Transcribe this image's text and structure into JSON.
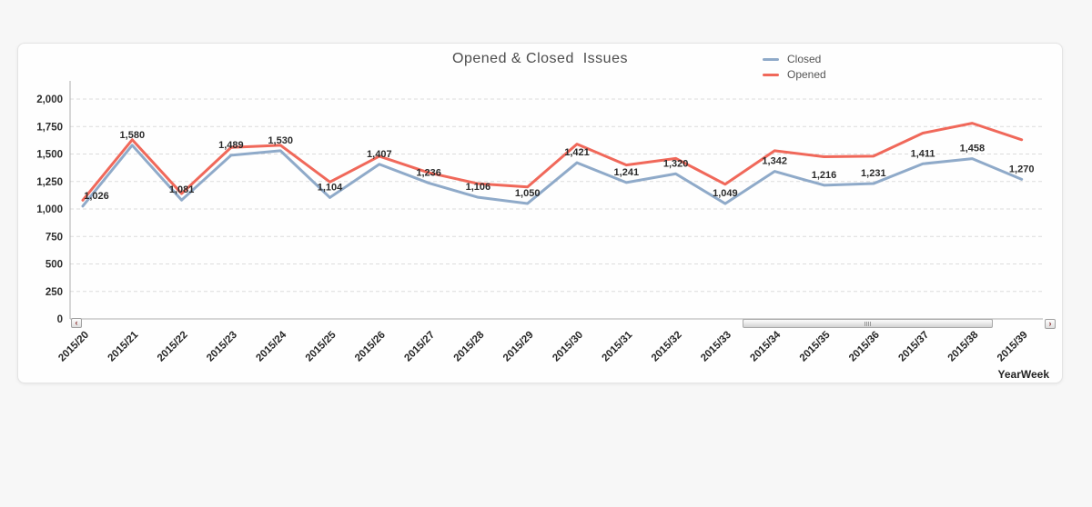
{
  "page": {
    "background": "#f7f7f7"
  },
  "card": {
    "background": "#fefefe",
    "border_color": "#e4e4e4"
  },
  "chart_data": {
    "type": "line",
    "title": "Opened & Closed  Issues",
    "xlabel": "YearWeek",
    "ylabel": "",
    "ylim": [
      0,
      2000
    ],
    "ytick_step": 250,
    "ytick_labels": [
      "0",
      "250",
      "500",
      "750",
      "1,000",
      "1,250",
      "1,500",
      "1,750",
      "2,000"
    ],
    "grid": true,
    "legend_position": "top-right",
    "categories": [
      "2015/20",
      "2015/21",
      "2015/22",
      "2015/23",
      "2015/24",
      "2015/25",
      "2015/26",
      "2015/27",
      "2015/28",
      "2015/29",
      "2015/30",
      "2015/31",
      "2015/32",
      "2015/33",
      "2015/34",
      "2015/35",
      "2015/36",
      "2015/37",
      "2015/38",
      "2015/39"
    ],
    "series": [
      {
        "name": "Closed",
        "color": "#8faac9",
        "show_labels": true,
        "values": [
          1026,
          1580,
          1081,
          1489,
          1530,
          1104,
          1407,
          1236,
          1106,
          1050,
          1421,
          1241,
          1320,
          1049,
          1342,
          1216,
          1231,
          1411,
          1458,
          1270
        ],
        "labels": [
          "1,026",
          "1,580",
          "1,081",
          "1,489",
          "1,530",
          "1,104",
          "1,407",
          "1,236",
          "1,106",
          "1,050",
          "1,421",
          "1,241",
          "1,320",
          "1,049",
          "1,342",
          "1,216",
          "1,231",
          "1,411",
          "1,458",
          "1,270"
        ]
      },
      {
        "name": "Opened",
        "color": "#f0685a",
        "show_labels": false,
        "values": [
          1080,
          1630,
          1140,
          1560,
          1580,
          1245,
          1480,
          1330,
          1230,
          1200,
          1590,
          1400,
          1460,
          1225,
          1530,
          1475,
          1480,
          1690,
          1780,
          1630
        ]
      }
    ]
  },
  "scrollbar": {
    "left_arrow": "‹",
    "right_arrow": "›"
  }
}
